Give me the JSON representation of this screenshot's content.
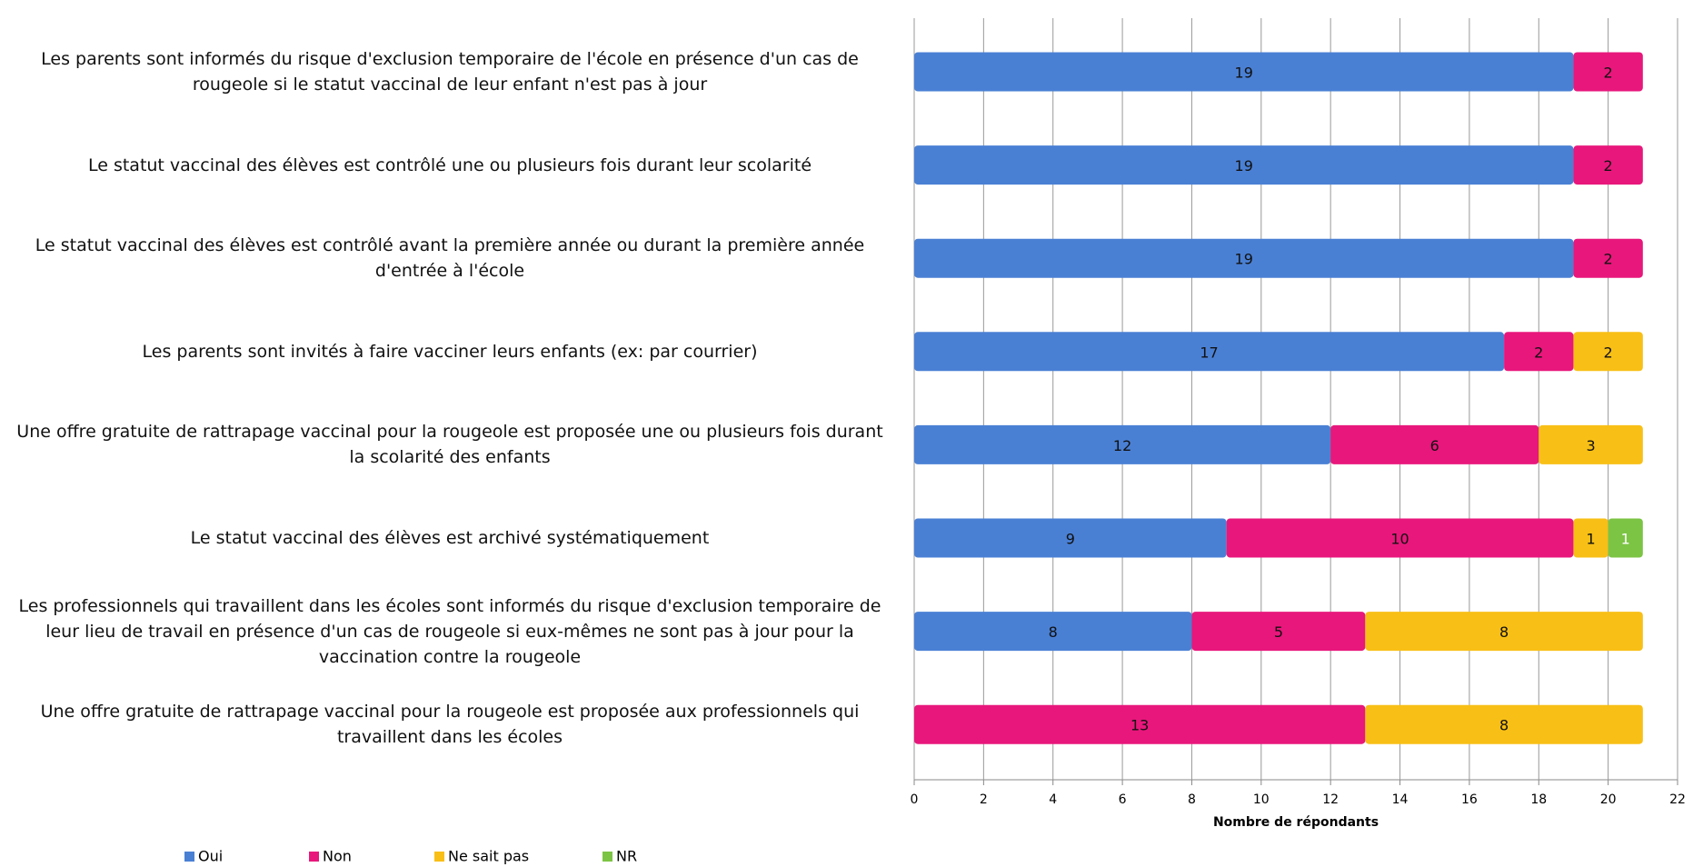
{
  "chart_data": {
    "type": "stacked-barh",
    "x_label": "Nombre de répondants",
    "categories": [
      "Les parents sont informés du risque d'exclusion temporaire de l'école en présence d'un cas de rougeole si le statut vaccinal de leur enfant n'est pas à jour",
      "Le statut vaccinal des élèves est contrôlé une ou plusieurs fois durant leur scolarité",
      "Le statut vaccinal des élèves est contrôlé avant la première année ou durant la première année d'entrée à l'école",
      "Les parents sont invités à faire vacciner leurs enfants (ex: par courrier)",
      "Une offre gratuite de rattrapage vaccinal pour la rougeole est proposée une ou plusieurs fois durant la scolarité des enfants",
      "Le statut vaccinal des élèves est archivé systématiquement",
      "Les professionnels qui travaillent dans les écoles sont informés du risque d'exclusion temporaire de leur lieu de travail en présence d'un cas de rougeole si eux-mêmes ne sont pas à jour pour la vaccination contre la rougeole",
      "Une offre gratuite de rattrapage vaccinal pour la rougeole est proposée aux professionnels qui travaillent dans les écoles"
    ],
    "series": [
      {
        "name": "Oui",
        "color": "#4a80d4",
        "values": [
          19,
          19,
          19,
          17,
          12,
          9,
          8,
          0
        ]
      },
      {
        "name": "Non",
        "color": "#e8177c",
        "values": [
          2,
          2,
          2,
          2,
          6,
          10,
          5,
          13
        ]
      },
      {
        "name": "Ne sait pas",
        "color": "#f8bf16",
        "values": [
          null,
          null,
          null,
          2,
          3,
          1,
          8,
          8
        ]
      },
      {
        "name": "NR",
        "color": "#7cc444",
        "values": [
          0,
          0,
          0,
          null,
          null,
          1,
          null,
          null
        ]
      }
    ],
    "xlim": [
      0,
      22
    ],
    "xticks": [
      0,
      2,
      4,
      6,
      8,
      10,
      12,
      14,
      16,
      18,
      20,
      22
    ],
    "grid": true
  }
}
